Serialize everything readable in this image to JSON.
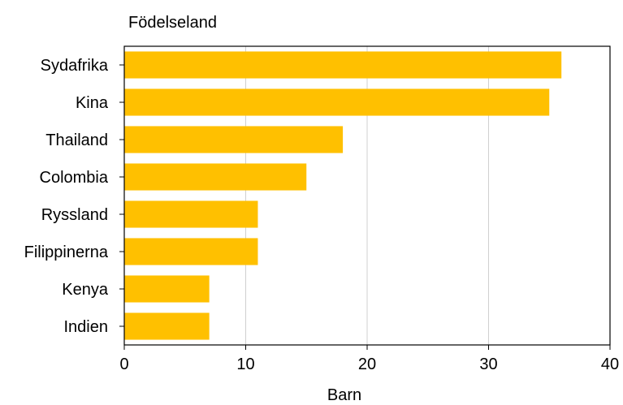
{
  "chart_data": {
    "type": "bar",
    "orientation": "horizontal",
    "category_title": "Födelseland",
    "categories": [
      "Sydafrika",
      "Kina",
      "Thailand",
      "Colombia",
      "Ryssland",
      "Filippinerna",
      "Kenya",
      "Indien"
    ],
    "values": [
      36,
      35,
      18,
      15,
      11,
      11,
      7,
      7
    ],
    "xlabel": "Barn",
    "xlim": [
      0,
      40
    ],
    "xticks": [
      "0",
      "10",
      "20",
      "30",
      "40"
    ],
    "grid": "vertical",
    "legend": "none",
    "colors": {
      "bar": "#FFC000",
      "grid": "#d0d0d0",
      "axis": "#000000"
    }
  }
}
